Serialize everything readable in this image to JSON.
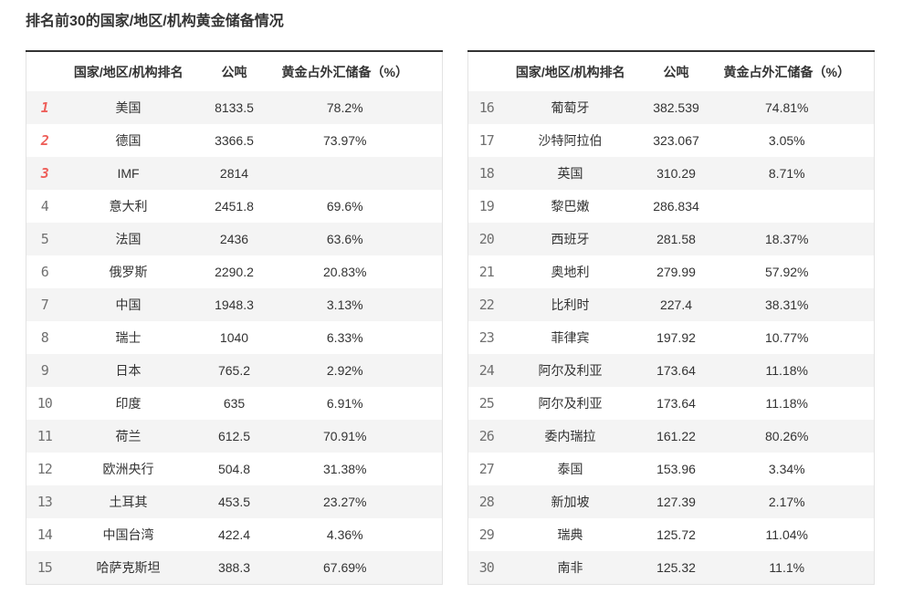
{
  "page": {
    "title": "排名前30的国家/地区/机构黄金储备情况"
  },
  "columns": {
    "rank_name": "国家/地区/机构排名",
    "tons": "公吨",
    "pct": "黄金占外汇储备（%）"
  },
  "style": {
    "accent_rank_color": "#ee5f5a",
    "rank_color": "#707070",
    "text_color": "#333333",
    "alt_row_bg": "#f4f4f4",
    "top_border_color": "#333333",
    "light_border_color": "#e3e3e3"
  },
  "tables": [
    {
      "name": "ranks-1-15",
      "rows": [
        {
          "rank": "1",
          "name": "美国",
          "tons": "8133.5",
          "pct": "78.2%",
          "highlight": true
        },
        {
          "rank": "2",
          "name": "德国",
          "tons": "3366.5",
          "pct": "73.97%",
          "highlight": true
        },
        {
          "rank": "3",
          "name": "IMF",
          "tons": "2814",
          "pct": "",
          "highlight": true
        },
        {
          "rank": "4",
          "name": "意大利",
          "tons": "2451.8",
          "pct": "69.6%",
          "highlight": false
        },
        {
          "rank": "5",
          "name": "法国",
          "tons": "2436",
          "pct": "63.6%",
          "highlight": false
        },
        {
          "rank": "6",
          "name": "俄罗斯",
          "tons": "2290.2",
          "pct": "20.83%",
          "highlight": false
        },
        {
          "rank": "7",
          "name": "中国",
          "tons": "1948.3",
          "pct": "3.13%",
          "highlight": false
        },
        {
          "rank": "8",
          "name": "瑞士",
          "tons": "1040",
          "pct": "6.33%",
          "highlight": false
        },
        {
          "rank": "9",
          "name": "日本",
          "tons": "765.2",
          "pct": "2.92%",
          "highlight": false
        },
        {
          "rank": "10",
          "name": "印度",
          "tons": "635",
          "pct": "6.91%",
          "highlight": false
        },
        {
          "rank": "11",
          "name": "荷兰",
          "tons": "612.5",
          "pct": "70.91%",
          "highlight": false
        },
        {
          "rank": "12",
          "name": "欧洲央行",
          "tons": "504.8",
          "pct": "31.38%",
          "highlight": false
        },
        {
          "rank": "13",
          "name": "土耳其",
          "tons": "453.5",
          "pct": "23.27%",
          "highlight": false
        },
        {
          "rank": "14",
          "name": "中国台湾",
          "tons": "422.4",
          "pct": "4.36%",
          "highlight": false
        },
        {
          "rank": "15",
          "name": "哈萨克斯坦",
          "tons": "388.3",
          "pct": "67.69%",
          "highlight": false
        }
      ]
    },
    {
      "name": "ranks-16-30",
      "rows": [
        {
          "rank": "16",
          "name": "葡萄牙",
          "tons": "382.539",
          "pct": "74.81%",
          "highlight": false
        },
        {
          "rank": "17",
          "name": "沙特阿拉伯",
          "tons": "323.067",
          "pct": "3.05%",
          "highlight": false
        },
        {
          "rank": "18",
          "name": "英国",
          "tons": "310.29",
          "pct": "8.71%",
          "highlight": false
        },
        {
          "rank": "19",
          "name": "黎巴嫩",
          "tons": "286.834",
          "pct": "",
          "highlight": false
        },
        {
          "rank": "20",
          "name": "西班牙",
          "tons": "281.58",
          "pct": "18.37%",
          "highlight": false
        },
        {
          "rank": "21",
          "name": "奥地利",
          "tons": "279.99",
          "pct": "57.92%",
          "highlight": false
        },
        {
          "rank": "22",
          "name": "比利时",
          "tons": "227.4",
          "pct": "38.31%",
          "highlight": false
        },
        {
          "rank": "23",
          "name": "菲律宾",
          "tons": "197.92",
          "pct": "10.77%",
          "highlight": false
        },
        {
          "rank": "24",
          "name": "阿尔及利亚",
          "tons": "173.64",
          "pct": "11.18%",
          "highlight": false
        },
        {
          "rank": "25",
          "name": "阿尔及利亚",
          "tons": "173.64",
          "pct": "11.18%",
          "highlight": false
        },
        {
          "rank": "26",
          "name": "委内瑞拉",
          "tons": "161.22",
          "pct": "80.26%",
          "highlight": false
        },
        {
          "rank": "27",
          "name": "泰国",
          "tons": "153.96",
          "pct": "3.34%",
          "highlight": false
        },
        {
          "rank": "28",
          "name": "新加坡",
          "tons": "127.39",
          "pct": "2.17%",
          "highlight": false
        },
        {
          "rank": "29",
          "name": "瑞典",
          "tons": "125.72",
          "pct": "11.04%",
          "highlight": false
        },
        {
          "rank": "30",
          "name": "南非",
          "tons": "125.32",
          "pct": "11.1%",
          "highlight": false
        }
      ]
    }
  ]
}
